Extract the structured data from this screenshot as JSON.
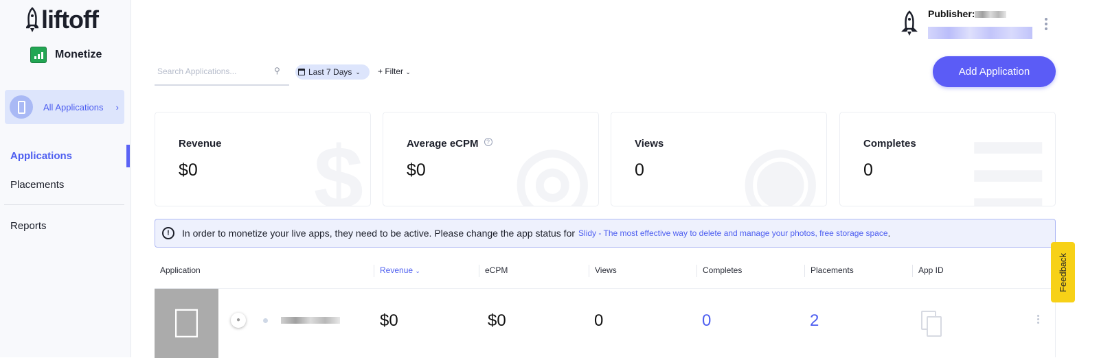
{
  "brand": {
    "logo": "liftoff",
    "product": "Monetize"
  },
  "sidebar": {
    "all_apps": "All Applications",
    "items": [
      {
        "label": "Applications",
        "active": true
      },
      {
        "label": "Placements"
      },
      {
        "label": "Reports"
      }
    ]
  },
  "toolbar": {
    "search_placeholder": "Search Applications...",
    "date_range": "Last 7 Days",
    "filter": "+ Filter",
    "add_button": "Add Application"
  },
  "header": {
    "publisher_label": "Publisher:"
  },
  "cards": [
    {
      "title": "Revenue",
      "value": "$0",
      "icon": "dollar-icon"
    },
    {
      "title": "Average eCPM",
      "value": "$0",
      "icon": "target-icon",
      "help": "?"
    },
    {
      "title": "Views",
      "value": "0",
      "icon": "eye-icon"
    },
    {
      "title": "Completes",
      "value": "0",
      "icon": "list-check-icon"
    }
  ],
  "notice": {
    "text": "In order to monetize your live apps, they need to be active. Please change the app status for",
    "link": "Slidy - The most effective way to delete and manage your photos, free storage space",
    "end": "."
  },
  "table": {
    "columns": [
      "Application",
      "Revenue",
      "eCPM",
      "Views",
      "Completes",
      "Placements",
      "App ID"
    ],
    "sorted_column": "Revenue",
    "rows": [
      {
        "platform": "apple",
        "revenue": "$0",
        "ecpm": "$0",
        "views": "0",
        "completes": "0",
        "placements": "2"
      }
    ]
  },
  "feedback": "Feedback",
  "colors": {
    "accent": "#5b5cf6",
    "feedback": "#f7d117",
    "thumb": "#ababab"
  }
}
